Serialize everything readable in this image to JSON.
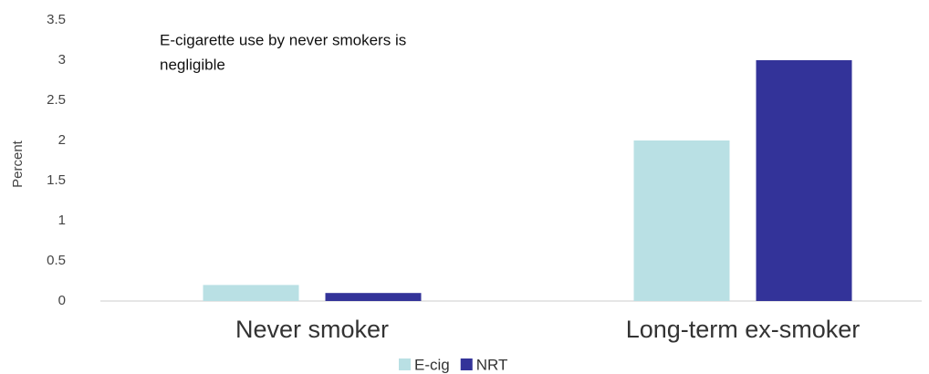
{
  "chart_data": {
    "type": "bar",
    "annotation": [
      "E-cigarette use by never smokers is",
      "negligible"
    ],
    "y_label": "Percent",
    "categories": [
      "Never smoker",
      "Long-term ex-smoker"
    ],
    "series": [
      {
        "name": "E-cig",
        "color": "#b9e0e4",
        "values": [
          0.2,
          2
        ]
      },
      {
        "name": "NRT",
        "color": "#333399",
        "values": [
          0.1,
          3
        ]
      }
    ],
    "ylim": [
      0,
      3.5
    ],
    "yticks": [
      0,
      0.5,
      1,
      1.5,
      2,
      2.5,
      3,
      3.5
    ],
    "grid": false,
    "legend": "bottom"
  }
}
